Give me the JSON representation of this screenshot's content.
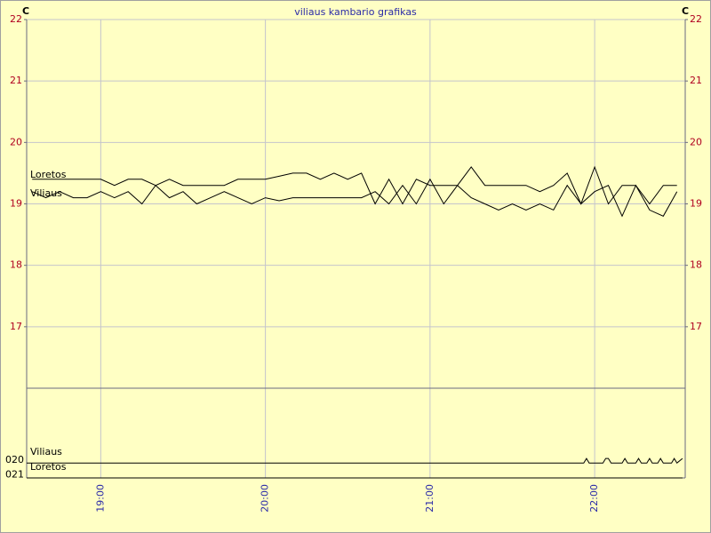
{
  "chart_data": [
    {
      "type": "line",
      "title": "viliaus kambario grafikas",
      "y_unit": "C",
      "x": [
        "18:35",
        "18:40",
        "18:45",
        "18:50",
        "18:55",
        "19:00",
        "19:05",
        "19:10",
        "19:15",
        "19:20",
        "19:25",
        "19:30",
        "19:35",
        "19:40",
        "19:45",
        "19:50",
        "19:55",
        "20:00",
        "20:05",
        "20:10",
        "20:15",
        "20:20",
        "20:25",
        "20:30",
        "20:35",
        "20:40",
        "20:45",
        "20:50",
        "20:55",
        "21:00",
        "21:05",
        "21:10",
        "21:15",
        "21:20",
        "21:25",
        "21:30",
        "21:35",
        "21:40",
        "21:45",
        "21:50",
        "21:55",
        "22:00",
        "22:05",
        "22:10",
        "22:15",
        "22:20",
        "22:25",
        "22:30"
      ],
      "series": [
        {
          "name": "Loretos",
          "color": "#000000",
          "values": [
            19.4,
            19.4,
            19.4,
            19.4,
            19.4,
            19.4,
            19.3,
            19.4,
            19.4,
            19.3,
            19.4,
            19.3,
            19.3,
            19.3,
            19.3,
            19.4,
            19.4,
            19.4,
            19.45,
            19.5,
            19.5,
            19.4,
            19.5,
            19.4,
            19.5,
            19.0,
            19.4,
            19.0,
            19.4,
            19.3,
            19.3,
            19.3,
            19.6,
            19.3,
            19.3,
            19.3,
            19.3,
            19.2,
            19.3,
            19.5,
            19.0,
            19.6,
            19.0,
            19.3,
            19.3,
            19.0,
            19.3,
            19.3
          ]
        },
        {
          "name": "Viliaus",
          "color": "#000000",
          "values": [
            19.2,
            19.1,
            19.2,
            19.1,
            19.1,
            19.2,
            19.1,
            19.2,
            19.0,
            19.3,
            19.1,
            19.2,
            19.0,
            19.1,
            19.2,
            19.1,
            19.0,
            19.1,
            19.05,
            19.1,
            19.1,
            19.1,
            19.1,
            19.1,
            19.1,
            19.2,
            19.0,
            19.3,
            19.0,
            19.4,
            19.0,
            19.3,
            19.1,
            19.0,
            18.9,
            19.0,
            18.9,
            19.0,
            18.9,
            19.3,
            19.0,
            19.2,
            19.3,
            18.8,
            19.3,
            18.9,
            18.8,
            19.2
          ]
        }
      ],
      "xlim": [
        "18:33",
        "22:33"
      ],
      "xticks": [
        "19:00",
        "20:00",
        "21:00",
        "22:00"
      ],
      "ylim": [
        16,
        22
      ],
      "yticks": [
        17,
        18,
        19,
        20,
        21,
        22
      ],
      "tick_color": "#b00020",
      "grid": true
    },
    {
      "type": "line",
      "x": [
        "18:33",
        "21:56",
        "21:57",
        "21:58",
        "22:03",
        "22:04",
        "22:05",
        "22:06",
        "22:10",
        "22:11",
        "22:12",
        "22:15",
        "22:16",
        "22:17",
        "22:19",
        "22:20",
        "22:21",
        "22:23",
        "22:24",
        "22:25",
        "22:28",
        "22:29",
        "22:30",
        "22:32"
      ],
      "series": [
        {
          "name": "Viliaus",
          "color": "#000000",
          "values": [
            0.8,
            0.8,
            1.1,
            0.8,
            0.8,
            1.1,
            1.1,
            0.8,
            0.8,
            1.1,
            0.8,
            0.8,
            1.1,
            0.8,
            0.8,
            1.1,
            0.8,
            0.8,
            1.1,
            0.8,
            0.8,
            1.1,
            0.8,
            1.1
          ]
        },
        {
          "name": "Loretos",
          "color": "#000000",
          "values": [
            -0.2,
            -0.2,
            -0.2,
            -0.2,
            -0.2,
            -0.2,
            -0.2,
            -0.2,
            -0.2,
            -0.2,
            -0.2,
            -0.2,
            -0.2,
            -0.2,
            -0.2,
            -0.2,
            -0.2,
            -0.2,
            -0.2,
            -0.2,
            -0.2,
            -0.2,
            -0.2,
            -0.2
          ]
        }
      ],
      "ylim": [
        -0.2,
        5.8
      ],
      "yticks": [
        {
          "value": 1,
          "label": "020"
        },
        {
          "value": 0,
          "label": "021"
        }
      ]
    }
  ]
}
